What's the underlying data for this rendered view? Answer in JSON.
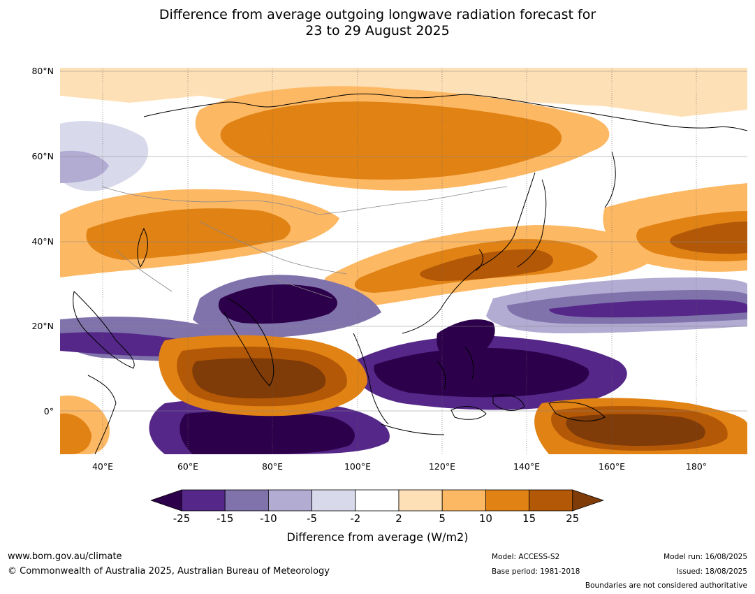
{
  "title": {
    "line1": "Difference from average outgoing longwave radiation forecast for",
    "line2": "23 to 29 August 2025"
  },
  "map": {
    "lat_labels": [
      "80°N",
      "60°N",
      "40°N",
      "20°N",
      "0°"
    ],
    "lon_labels": [
      "40°E",
      "60°E",
      "80°E",
      "100°E",
      "120°E",
      "140°E",
      "160°E",
      "180°"
    ],
    "colors": {
      "below_-25": "#2d004b",
      "-25_-15": "#542788",
      "-15_-10": "#8073ac",
      "-10_-5": "#b2abd2",
      "-5_-2": "#d8daeb",
      "-2_2": "#ffffff",
      "2_5": "#fee0b6",
      "5_10": "#fdb863",
      "10_15": "#e08214",
      "15_25": "#b35806",
      "above_25": "#7f3b08",
      "coastline": "#000000",
      "borders": "#808080"
    }
  },
  "colorbar": {
    "ticks": [
      "-25",
      "-15",
      "-10",
      "-5",
      "-2",
      "2",
      "5",
      "10",
      "15",
      "25"
    ],
    "colors": [
      "#542788",
      "#8073ac",
      "#b2abd2",
      "#d8daeb",
      "#ffffff",
      "#fee0b6",
      "#fdb863",
      "#e08214",
      "#b35806"
    ],
    "under_color": "#2d004b",
    "over_color": "#7f3b08",
    "label": "Difference from average (W/m2)"
  },
  "footer": {
    "url": "www.bom.gov.au/climate",
    "copyright": "© Commonwealth of Australia 2025, Australian Bureau of Meteorology",
    "model": "Model: ACCESS-S2",
    "base_period": "Base period: 1981-2018",
    "model_run": "Model run: 16/08/2025",
    "issued": "Issued: 18/08/2025",
    "disclaimer": "Boundaries are not considered authoritative"
  }
}
